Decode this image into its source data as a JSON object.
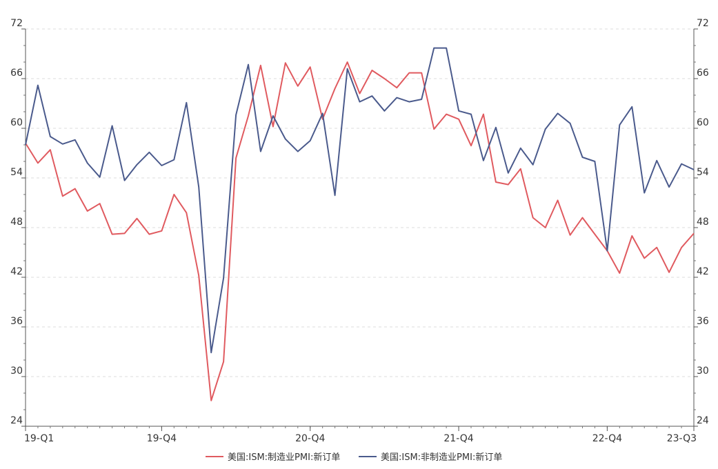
{
  "chart_data": {
    "type": "line",
    "title": "",
    "xlabel": "",
    "ylabel": "",
    "ylim": [
      24,
      72
    ],
    "y_ticks": [
      24,
      30,
      36,
      42,
      48,
      54,
      60,
      66,
      72
    ],
    "y_axis_right": true,
    "grid": "horizontal-dashed",
    "legend_position": "bottom",
    "x_tick_labels": [
      {
        "index": 0,
        "label": "19-Q1"
      },
      {
        "index": 11,
        "label": "19-Q4"
      },
      {
        "index": 23,
        "label": "20-Q4"
      },
      {
        "index": 35,
        "label": "21-Q4"
      },
      {
        "index": 47,
        "label": "22-Q4"
      },
      {
        "index": 54,
        "label": "23-Q3"
      }
    ],
    "series": [
      {
        "name": "美国:ISM:制造业PMI:新订单",
        "color": "#e05a5f",
        "values": [
          58.2,
          55.8,
          57.4,
          51.8,
          52.7,
          50.0,
          50.9,
          47.2,
          47.3,
          49.1,
          47.2,
          47.6,
          52.0,
          49.8,
          42.2,
          27.1,
          31.8,
          56.4,
          61.5,
          67.6,
          60.2,
          67.9,
          65.1,
          67.4,
          61.1,
          64.8,
          68.0,
          64.2,
          67.0,
          66.0,
          64.9,
          66.7,
          66.7,
          59.9,
          61.7,
          61.1,
          57.9,
          61.7,
          53.5,
          53.2,
          55.1,
          49.2,
          48.0,
          51.3,
          47.1,
          49.2,
          47.2,
          45.2,
          42.5,
          47.0,
          44.3,
          45.6,
          42.6,
          45.6,
          47.3
        ]
      },
      {
        "name": "美国:ISM:非制造业PMI:新订单",
        "color": "#4a5a8c",
        "values": [
          58.0,
          65.2,
          59.0,
          58.1,
          58.6,
          55.8,
          54.1,
          60.3,
          53.7,
          55.6,
          57.1,
          55.5,
          56.2,
          63.1,
          52.9,
          32.9,
          41.9,
          61.6,
          67.7,
          57.2,
          61.5,
          58.7,
          57.2,
          58.5,
          61.8,
          51.9,
          67.2,
          63.2,
          63.9,
          62.1,
          63.7,
          63.2,
          63.5,
          69.7,
          69.7,
          62.1,
          61.7,
          56.1,
          60.1,
          54.6,
          57.6,
          55.6,
          59.9,
          61.8,
          60.6,
          56.5,
          56.0,
          45.2,
          60.4,
          62.6,
          52.2,
          56.1,
          52.9,
          55.7,
          55.0
        ]
      }
    ]
  }
}
